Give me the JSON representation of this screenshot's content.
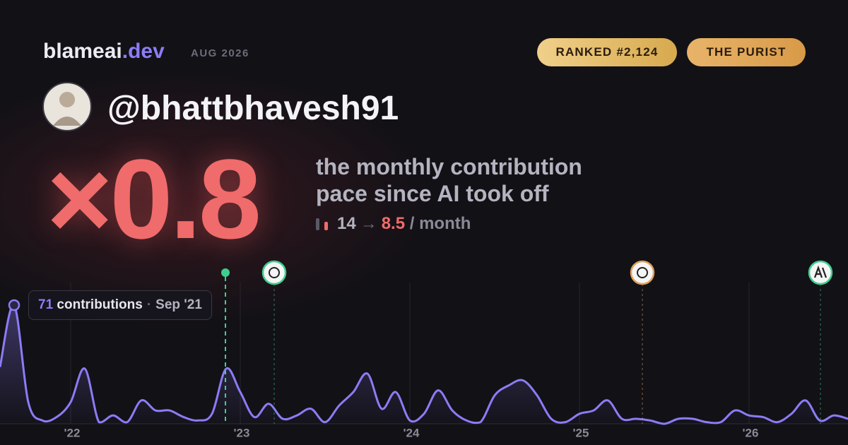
{
  "brand": {
    "name": "blameai",
    "tld": ".dev",
    "date": "AUG 2026"
  },
  "badges": [
    "RANKED #2,124",
    "THE PURIST"
  ],
  "username": "@bhattbhavesh91",
  "multiplier": "×0.8",
  "description": [
    "the monthly contribution",
    "pace since AI took off"
  ],
  "pace": {
    "before": 14,
    "arrow": "→",
    "after": 8.5,
    "unit": "/ month"
  },
  "tooltip": {
    "label": "contributions",
    "date": "Sep '21"
  },
  "chart_data": {
    "type": "line",
    "x": [
      "2021-08",
      "2021-09",
      "2021-10",
      "2021-11",
      "2021-12",
      "2022-01",
      "2022-02",
      "2022-03",
      "2022-04",
      "2022-05",
      "2022-06",
      "2022-07",
      "2022-08",
      "2022-09",
      "2022-10",
      "2022-11",
      "2022-12",
      "2023-01",
      "2023-02",
      "2023-03",
      "2023-04",
      "2023-05",
      "2023-06",
      "2023-07",
      "2023-08",
      "2023-09",
      "2023-10",
      "2023-11",
      "2023-12",
      "2024-01",
      "2024-02",
      "2024-03",
      "2024-04",
      "2024-05",
      "2024-06",
      "2024-07",
      "2024-08",
      "2024-09",
      "2024-10",
      "2024-11",
      "2024-12",
      "2025-01",
      "2025-02",
      "2025-03",
      "2025-04",
      "2025-05",
      "2025-06",
      "2025-07",
      "2025-08",
      "2025-09",
      "2025-10",
      "2025-11",
      "2025-12",
      "2026-01",
      "2026-02",
      "2026-03",
      "2026-04",
      "2026-05",
      "2026-06",
      "2026-07",
      "2026-08"
    ],
    "series": [
      {
        "name": "contributions",
        "color": "#8b7cf6",
        "values": [
          34,
          71,
          13,
          2,
          4,
          13,
          33,
          1,
          5,
          1,
          14,
          8,
          8,
          4,
          2,
          6,
          33,
          19,
          4,
          12,
          3,
          5,
          9,
          1,
          11,
          19,
          30,
          9,
          19,
          2,
          6,
          20,
          8,
          2,
          1,
          17,
          23,
          26,
          17,
          3,
          1,
          6,
          8,
          14,
          3,
          3,
          2,
          0,
          3,
          3,
          1,
          1,
          8,
          5,
          4,
          1,
          6,
          14,
          2,
          5,
          3
        ]
      }
    ],
    "xlim": [
      "2021-08",
      "2026-08"
    ],
    "xticks": [
      {
        "value": "2022-01",
        "label": "'22"
      },
      {
        "value": "2023-01",
        "label": "'23"
      },
      {
        "value": "2024-01",
        "label": "'24"
      },
      {
        "value": "2025-01",
        "label": "'25"
      },
      {
        "value": "2026-01",
        "label": "'26"
      }
    ],
    "ylim": [
      0,
      71
    ],
    "grid": true
  }
}
